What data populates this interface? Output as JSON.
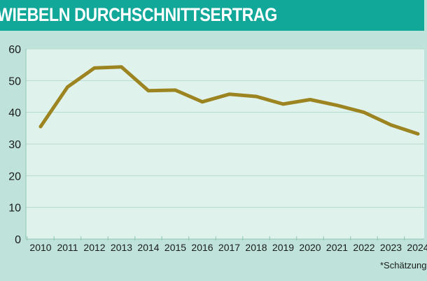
{
  "header": {
    "title": "WIEBELN DURCHSCHNITTSERTRAG"
  },
  "chart_data": {
    "type": "line",
    "title": "WIEBELN DURCHSCHNITTSERTRAG",
    "xlabel": "",
    "ylabel": "",
    "categories": [
      "2010",
      "2011",
      "2012",
      "2013",
      "2014",
      "2015",
      "2016",
      "2017",
      "2018",
      "2019",
      "2020",
      "2021",
      "2022",
      "2023",
      "2024"
    ],
    "series": [
      {
        "name": "Durchschnittsertrag",
        "values": [
          35.5,
          48,
          54,
          54.3,
          46.8,
          47,
          43.3,
          45.7,
          45,
          42.6,
          44,
          42.2,
          40,
          36,
          33.2
        ],
        "color": "#9c8421"
      }
    ],
    "ylim": [
      0,
      60
    ],
    "yticks": [
      0,
      10,
      20,
      30,
      40,
      50,
      60
    ],
    "grid": true,
    "footnote": "*Schätzung",
    "colors": {
      "plot_background": "#dff2ec",
      "page_background": "#bfe3da",
      "header": "#11a89a",
      "gridline": "#b5dccd",
      "axis": "#8ec5b3"
    }
  }
}
